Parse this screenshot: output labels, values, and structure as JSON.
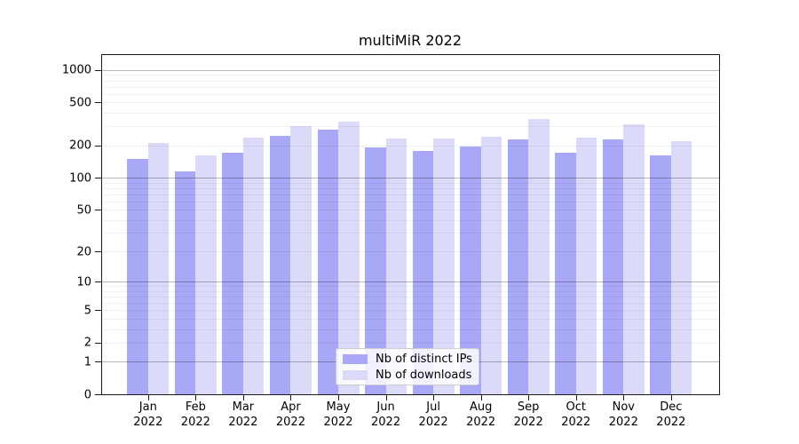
{
  "title": "multiMiR 2022",
  "legend": {
    "position": "lower center",
    "items": [
      {
        "label": "Nb of distinct IPs",
        "color": "#a8a8f6"
      },
      {
        "label": "Nb of downloads",
        "color": "#dbdbf9"
      }
    ]
  },
  "axes": {
    "y_tick_labels": [
      "1000",
      "500",
      "200",
      "100",
      "50",
      "20",
      "10",
      "5",
      "2",
      "1",
      "0"
    ],
    "x_months": [
      "Jan",
      "Feb",
      "Mar",
      "Apr",
      "May",
      "Jun",
      "Jul",
      "Aug",
      "Sep",
      "Oct",
      "Nov",
      "Dec"
    ],
    "x_year": "2022"
  },
  "chart_data": {
    "type": "bar",
    "title": "multiMiR 2022",
    "categories": [
      "Jan 2022",
      "Feb 2022",
      "Mar 2022",
      "Apr 2022",
      "May 2022",
      "Jun 2022",
      "Jul 2022",
      "Aug 2022",
      "Sep 2022",
      "Oct 2022",
      "Nov 2022",
      "Dec 2022"
    ],
    "series": [
      {
        "name": "Nb of distinct IPs",
        "color": "#a8a8f6",
        "values": [
          150,
          114,
          171,
          246,
          280,
          192,
          176,
          195,
          229,
          172,
          229,
          161
        ]
      },
      {
        "name": "Nb of downloads",
        "color": "#dbdbf9",
        "values": [
          210,
          162,
          237,
          300,
          335,
          232,
          232,
          240,
          350,
          234,
          314,
          218
        ]
      }
    ],
    "xlabel": "",
    "ylabel": "",
    "y_axis": {
      "scale": "log10(1+x)",
      "ticks": [
        1000,
        500,
        200,
        100,
        50,
        20,
        10,
        5,
        2,
        1,
        0
      ],
      "major_gridline_ticks": [
        1000,
        100,
        10,
        1
      ],
      "minor_gridline_ticks": [
        2,
        3,
        4,
        5,
        6,
        7,
        8,
        9,
        20,
        30,
        40,
        50,
        60,
        70,
        80,
        90,
        200,
        300,
        400,
        500,
        600,
        700,
        800,
        900
      ],
      "top_value": 1400
    },
    "grid": "on",
    "legend_position": "lower center"
  }
}
